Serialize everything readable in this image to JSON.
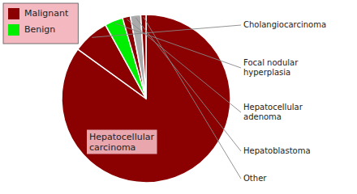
{
  "chart_data": {
    "type": "pie",
    "categories": [
      "Hepatocellular\ncarcinoma",
      "Cholangiocarcinoma",
      "Focal nodular\nhyperplasia",
      "Hepatocellular\nadenoma",
      "Hepatoblastoma",
      "Other"
    ],
    "values": [
      85,
      7,
      3.5,
      1.5,
      2.0,
      1.0
    ],
    "colors": [
      "#8B0000",
      "#8B0000",
      "#00EE00",
      "#8B0000",
      "#AAAAAA",
      "#8B0000"
    ],
    "legend": "upper left",
    "legend_entries": [
      {
        "name": "Malignant",
        "color": "#8B0000"
      },
      {
        "name": "Benign",
        "color": "#00EE00"
      }
    ]
  }
}
